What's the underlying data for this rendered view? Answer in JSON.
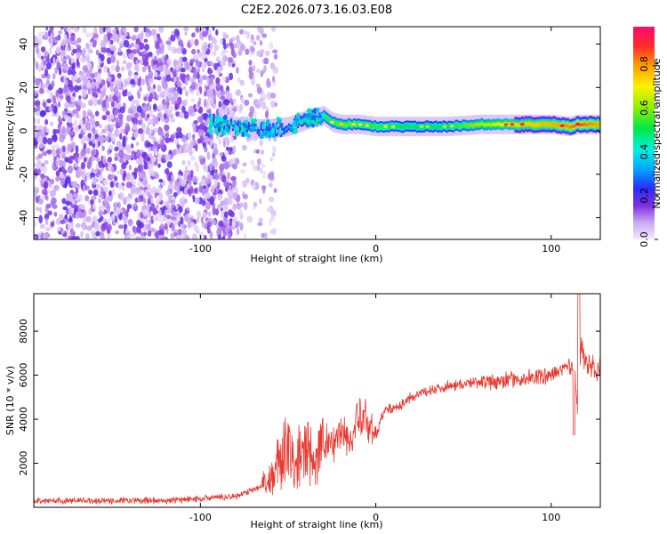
{
  "title": "C2E2.2026.073.16.03.E08",
  "chart_data": [
    {
      "type": "heatmap",
      "xlabel": "Height of straight line (km)",
      "ylabel": "Frequency (Hz)",
      "xlim": [
        -195,
        128
      ],
      "ylim": [
        -50,
        48
      ],
      "xticks": [
        -100,
        0,
        100
      ],
      "yticks": [
        -40,
        -20,
        0,
        20,
        40
      ],
      "colorbar": {
        "label": "Normalized spectral amplitude",
        "range": [
          0,
          0.97
        ],
        "ticks": [
          0.0,
          0.2,
          0.4,
          0.6,
          0.8
        ]
      },
      "signal_band": {
        "noise_region_km": [
          -195,
          -62
        ],
        "x": [
          -95,
          -80,
          -70,
          -60,
          -50,
          -40,
          -30,
          -25,
          -20,
          -10,
          0,
          20,
          40,
          60,
          80,
          100,
          110,
          115,
          128
        ],
        "center_hz": [
          3,
          2,
          1,
          1,
          2,
          5,
          7,
          4,
          3,
          3,
          2,
          2,
          2,
          3,
          3,
          3,
          2,
          3,
          3
        ],
        "peak_amplitude": [
          0.25,
          0.25,
          0.3,
          0.3,
          0.35,
          0.45,
          0.6,
          0.6,
          0.65,
          0.6,
          0.6,
          0.55,
          0.55,
          0.7,
          0.8,
          0.85,
          0.9,
          0.95,
          0.85
        ]
      }
    },
    {
      "type": "line",
      "xlabel": "Height of straight line (km)",
      "ylabel": "SNR (10 * v/v)",
      "xlim": [
        -195,
        128
      ],
      "ylim": [
        0,
        9700
      ],
      "xticks": [
        -100,
        0,
        100
      ],
      "yticks": [
        2000,
        4000,
        6000,
        8000
      ],
      "series": [
        {
          "name": "SNR",
          "color": "#e83a32",
          "x": [
            -195,
            -120,
            -80,
            -70,
            -65,
            -60,
            -55,
            -50,
            -45,
            -40,
            -35,
            -30,
            -25,
            -20,
            -15,
            -10,
            -5,
            0,
            5,
            10,
            15,
            20,
            30,
            40,
            50,
            60,
            70,
            80,
            90,
            100,
            105,
            110,
            113,
            115,
            117,
            120,
            125,
            128
          ],
          "y": [
            300,
            300,
            500,
            800,
            1000,
            1300,
            2000,
            2500,
            2000,
            2500,
            2000,
            3000,
            2800,
            3500,
            3000,
            3800,
            4000,
            3200,
            4500,
            4500,
            4700,
            5000,
            5300,
            5500,
            5600,
            5700,
            5700,
            5800,
            5900,
            6000,
            6200,
            6500,
            6300,
            4500,
            7500,
            6500,
            6300,
            6200
          ]
        }
      ]
    }
  ]
}
